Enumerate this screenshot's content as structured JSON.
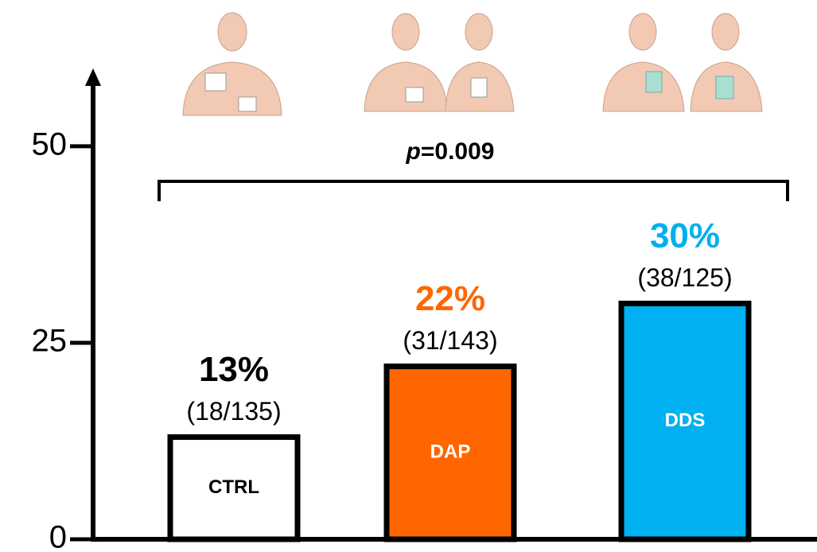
{
  "chart_data": {
    "type": "bar",
    "categories": [
      "CTRL",
      "DAP",
      "DDS"
    ],
    "values": [
      13,
      22,
      30
    ],
    "value_labels": [
      "13%",
      "22%",
      "30%"
    ],
    "counts": [
      "(18/135)",
      "(31/143)",
      "(38/125)"
    ],
    "colors": [
      "#ffffff",
      "#ff6600",
      "#00b0f0"
    ],
    "label_colors": [
      "#000000",
      "#ff6600",
      "#00b0f0"
    ],
    "category_label_colors": [
      "#000000",
      "#ffffff",
      "#ffffff"
    ],
    "annotation": [
      "p",
      "=0.009"
    ],
    "ylim": [
      0,
      59
    ],
    "yticks": [
      0,
      25,
      50
    ],
    "grid": false
  }
}
